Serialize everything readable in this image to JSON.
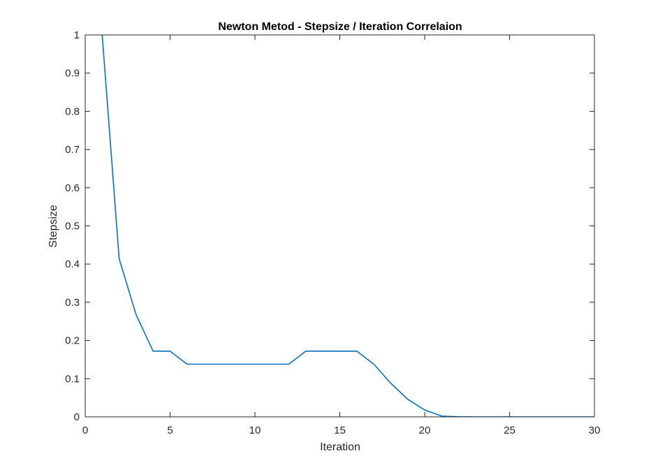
{
  "chart_data": {
    "type": "line",
    "title": "Newton Metod - Stepsize / Iteration Correlaion",
    "xlabel": "Iteration",
    "ylabel": "Stepsize",
    "xlim": [
      0,
      30
    ],
    "ylim": [
      0,
      1
    ],
    "xticks": [
      0,
      5,
      10,
      15,
      20,
      25,
      30
    ],
    "xtick_labels": [
      "0",
      "5",
      "10",
      "15",
      "20",
      "25",
      "30"
    ],
    "yticks": [
      0,
      0.1,
      0.2,
      0.3,
      0.4,
      0.5,
      0.6,
      0.7,
      0.8,
      0.9,
      1
    ],
    "ytick_labels": [
      "0",
      "0.1",
      "0.2",
      "0.3",
      "0.4",
      "0.5",
      "0.6",
      "0.7",
      "0.8",
      "0.9",
      "1"
    ],
    "grid": false,
    "box": true,
    "series": [
      {
        "color": "#0072BD",
        "x": [
          1,
          2,
          3,
          4,
          5,
          6,
          7,
          8,
          9,
          10,
          11,
          12,
          13,
          14,
          15,
          16,
          17,
          18,
          19,
          20,
          21,
          22,
          23,
          24,
          25,
          26,
          27,
          28,
          29,
          30
        ],
        "y": [
          1,
          0.414,
          0.267,
          0.172,
          0.172,
          0.138,
          0.138,
          0.138,
          0.138,
          0.138,
          0.138,
          0.138,
          0.172,
          0.172,
          0.172,
          0.172,
          0.138,
          0.088,
          0.046,
          0.018,
          0.002,
          0.0003,
          0,
          0,
          0,
          0,
          0,
          0,
          0,
          0
        ]
      }
    ]
  }
}
